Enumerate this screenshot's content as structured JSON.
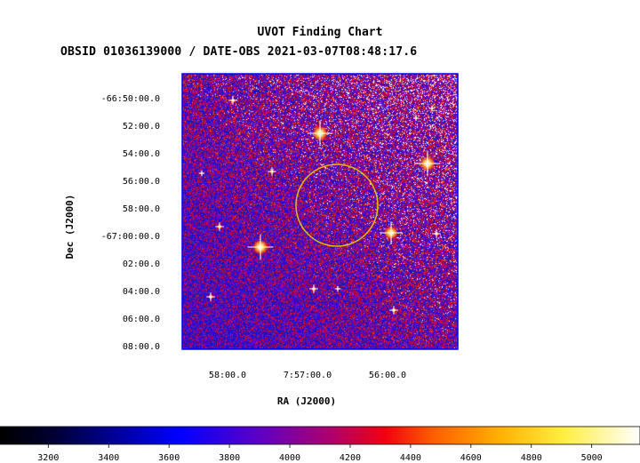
{
  "header": {
    "title": "UVOT Finding Chart",
    "subtitle": "OBSID 01036139000 / DATE-OBS 2021-03-07T08:48:17.6"
  },
  "chart_data": {
    "type": "heatmap",
    "title": "UVOT Finding Chart",
    "subtitle": "OBSID 01036139000 / DATE-OBS 2021-03-07T08:48:17.6",
    "xlabel": "RA (J2000)",
    "ylabel": "Dec (J2000)",
    "x_ticks": [
      "58:00.0",
      "7:57:00.0",
      "56:00.0"
    ],
    "y_ticks": [
      "-66:50:00.0",
      "52:00.0",
      "54:00.0",
      "56:00.0",
      "58:00.0",
      "-67:00:00.0",
      "02:00.0",
      "04:00.0",
      "06:00.0",
      "08:00.0"
    ],
    "colorbar": {
      "ticks": [
        "3200",
        "3400",
        "3600",
        "3800",
        "4000",
        "4200",
        "4400",
        "4600",
        "4800",
        "5000"
      ],
      "min": 3040,
      "max": 5160
    },
    "target_circle_color": "#e0c000",
    "frame_color": "#0000ff"
  },
  "colors": {
    "background": "#ffffff",
    "circle": "#e0c000",
    "frame": "#0000ff"
  }
}
